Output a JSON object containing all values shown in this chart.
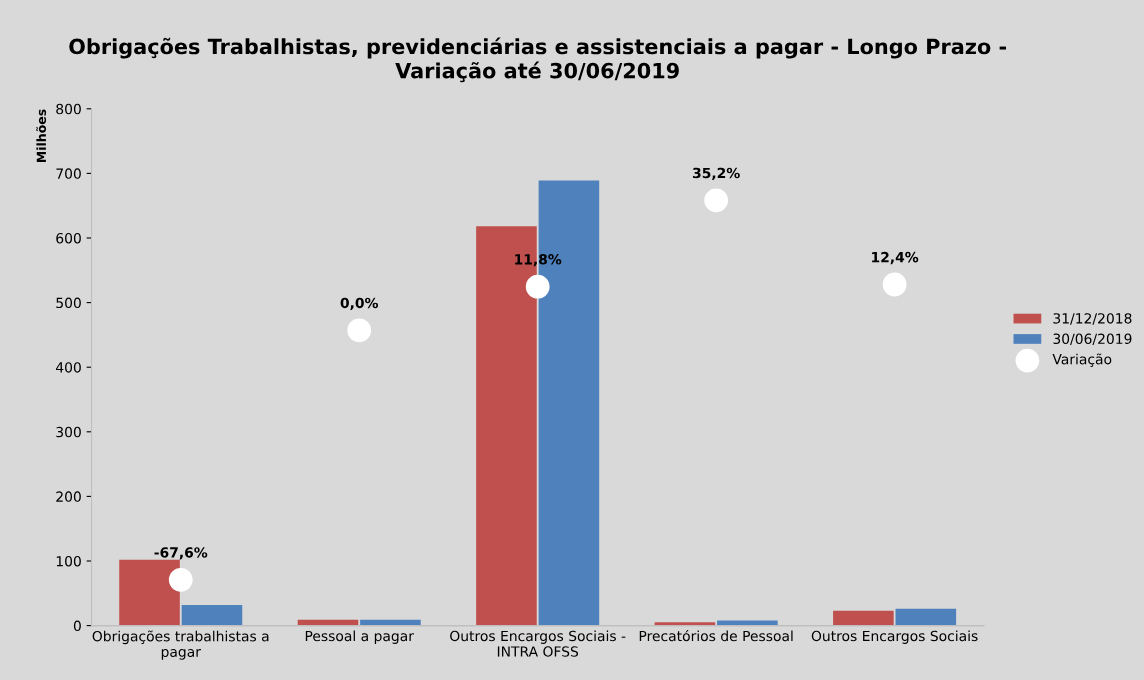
{
  "chart_data": {
    "type": "bar",
    "title": "Obrigações Trabalhistas, previdenciárias e assistenciais a pagar - Longo Prazo -\nVariação até 30/06/2019",
    "ylabel": "Milhões",
    "categories": [
      "Obrigações trabalhistas a\npagar",
      "Pessoal a pagar",
      "Outros Encargos Sociais -\nINTRA OFSS",
      "Precatórios de Pessoal",
      "Outros Encargos Sociais"
    ],
    "series": [
      {
        "name": "31/12/2018",
        "color": "#c0504d",
        "values": [
          102,
          9,
          618,
          5,
          23
        ]
      },
      {
        "name": "30/06/2019",
        "color": "#4f81bd",
        "values": [
          32,
          9,
          689,
          8,
          26
        ]
      },
      {
        "name": "Variação",
        "type": "scatter",
        "axis": "y2",
        "color": "#ffffff",
        "values": [
          -67.6,
          0.0,
          11.8,
          35.2,
          12.4
        ],
        "value_labels": [
          "-67,6%",
          "0,0%",
          "11,8%",
          "35,2%",
          "12,4%"
        ]
      }
    ],
    "ylim": [
      0,
      800
    ],
    "yticks": [
      0,
      100,
      200,
      300,
      400,
      500,
      600,
      700,
      800
    ],
    "y2lim": [
      -80,
      60
    ],
    "tick_labels": "xy",
    "marker": "circle",
    "legend": "right",
    "grid": false
  }
}
